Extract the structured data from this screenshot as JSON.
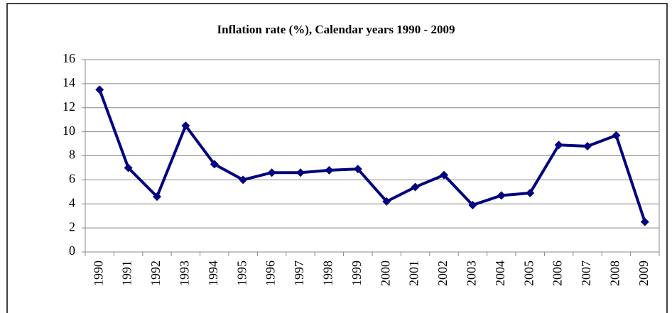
{
  "chart_data": {
    "type": "line",
    "title": "Inflation rate (%), Calendar years 1990 - 2009",
    "categories": [
      "1990",
      "1991",
      "1992",
      "1993",
      "1994",
      "1995",
      "1996",
      "1997",
      "1998",
      "1999",
      "2000",
      "2001",
      "2002",
      "2003",
      "2004",
      "2005",
      "2006",
      "2007",
      "2008",
      "2009"
    ],
    "values": [
      13.5,
      7.0,
      4.6,
      10.5,
      7.3,
      6.0,
      6.6,
      6.6,
      6.8,
      6.9,
      4.2,
      5.4,
      6.4,
      3.9,
      4.7,
      4.9,
      8.9,
      8.8,
      9.7,
      2.5
    ],
    "color": "#000080",
    "ylim": [
      0,
      16
    ],
    "yticks": [
      0,
      2,
      4,
      6,
      8,
      10,
      12,
      14,
      16
    ],
    "grid": true
  }
}
